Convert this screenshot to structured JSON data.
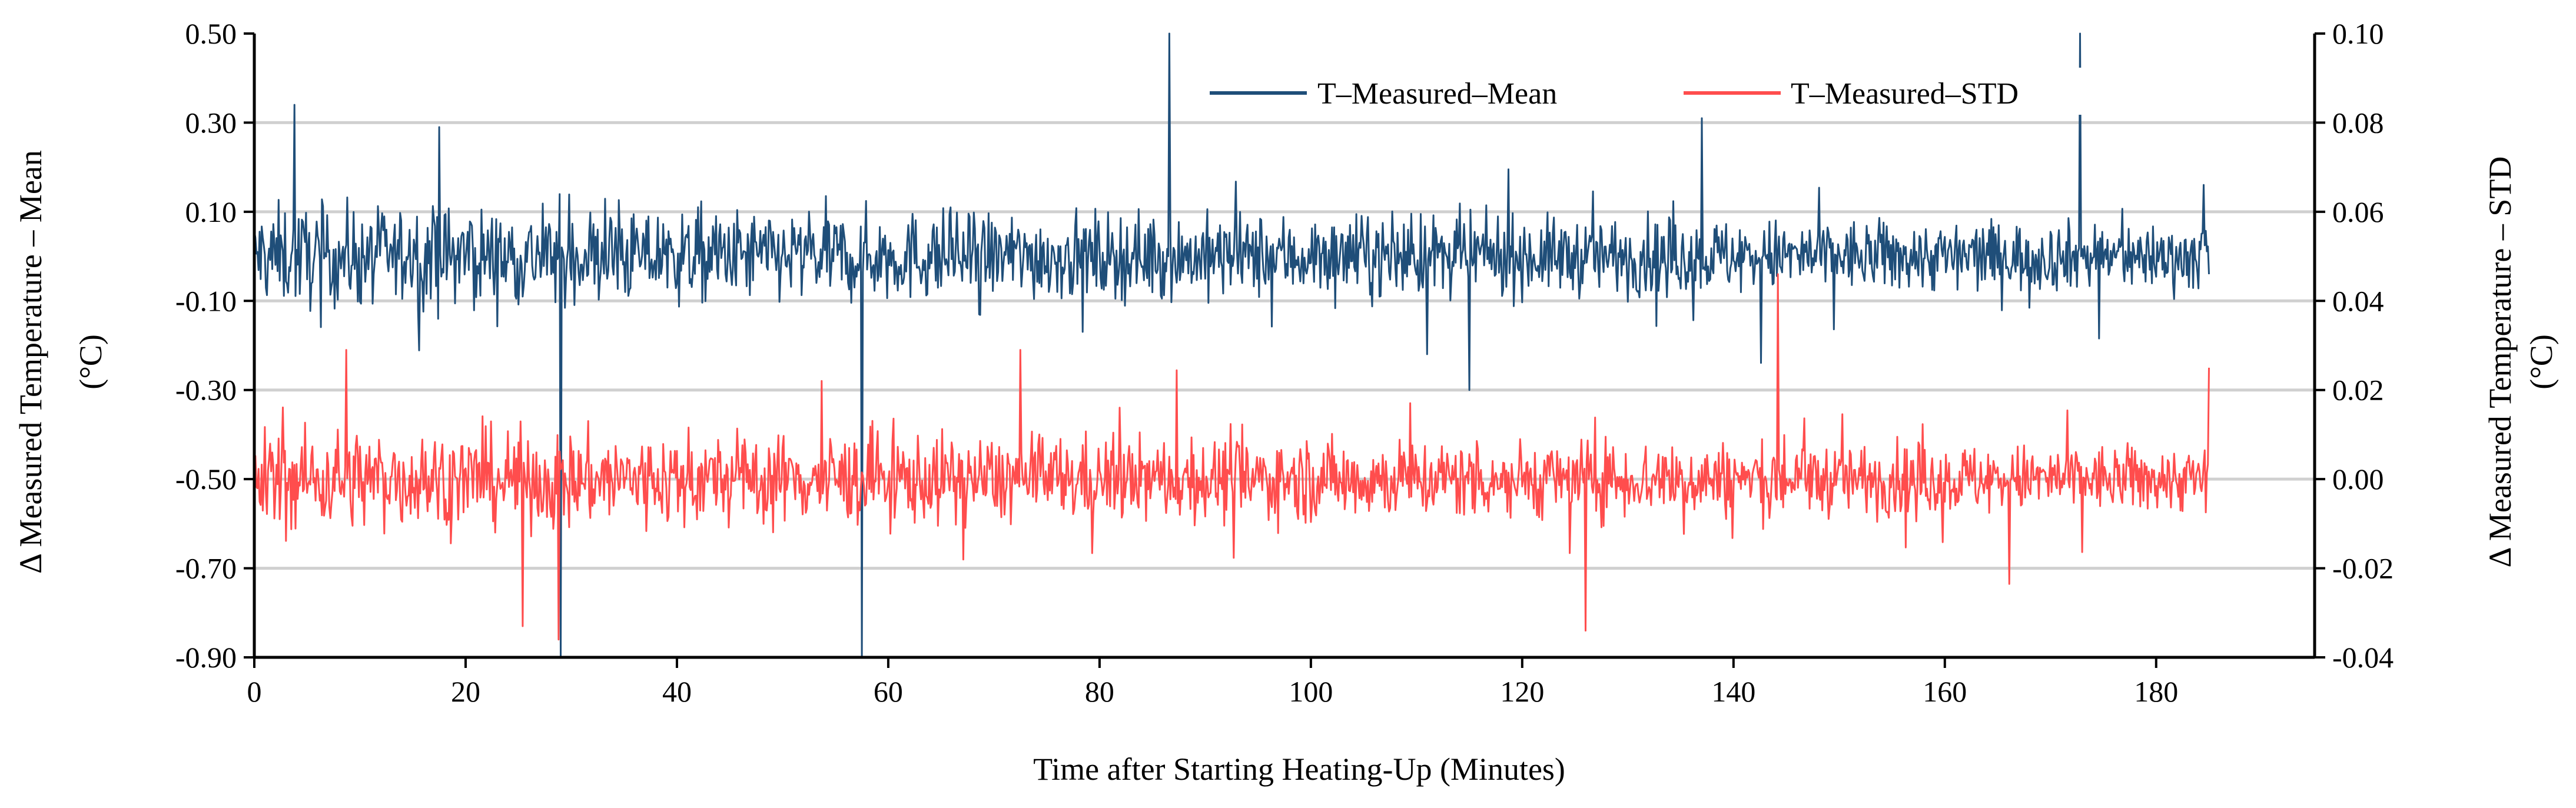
{
  "chart_data": {
    "type": "line",
    "xlabel": "Time after Starting Heating-Up (Minutes)",
    "ylabel_left": "Δ Measured Temperature – Mean (°C)",
    "ylabel_left_lines": [
      "Δ Measured Temperature – Mean",
      "(°C)"
    ],
    "ylabel_right": "Δ Measured Temperature – STD (°C)",
    "ylabel_right_lines": [
      "Δ Measured Temperature – STD",
      "(°C)"
    ],
    "xlim": [
      0,
      185
    ],
    "x_axis_max": 195,
    "ylim_left": [
      -0.9,
      0.5
    ],
    "ylim_right": [
      -0.04,
      0.1
    ],
    "x_ticks": [
      "0",
      "20",
      "40",
      "60",
      "80",
      "100",
      "120",
      "140",
      "160",
      "180"
    ],
    "y_left_ticks": [
      "0.50",
      "0.30",
      "0.10",
      "-0.10",
      "-0.30",
      "-0.50",
      "-0.70",
      "-0.90"
    ],
    "y_right_ticks": [
      "0.10",
      "0.08",
      "0.06",
      "0.04",
      "0.02",
      "0.00",
      "-0.02",
      "-0.04"
    ],
    "grid": "horizontal",
    "legend_position": "top-right",
    "series": [
      {
        "name": "T–Measured–Mean",
        "axis": "left",
        "color": "#1f4e79",
        "baseline": 0.0,
        "noise_amplitude": 0.12,
        "x_step": 0.1,
        "notable_points": [
          {
            "x": 3.8,
            "y": 0.34
          },
          {
            "x": 17.5,
            "y": 0.29
          },
          {
            "x": 29.0,
            "y": -0.9
          },
          {
            "x": 57.5,
            "y": -0.9
          },
          {
            "x": 86.6,
            "y": 0.5
          },
          {
            "x": 115.0,
            "y": -0.3
          },
          {
            "x": 137.0,
            "y": 0.31
          },
          {
            "x": 172.8,
            "y": 0.5
          },
          {
            "x": 185.0,
            "y": -0.04
          }
        ]
      },
      {
        "name": "T–Measured–STD",
        "axis": "right",
        "color": "#ff4d4d",
        "baseline": 0.0,
        "noise_amplitude": 0.012,
        "x_step": 0.1,
        "notable_points": [
          {
            "x": 8.7,
            "y": 0.029
          },
          {
            "x": 25.4,
            "y": -0.033
          },
          {
            "x": 28.8,
            "y": -0.036
          },
          {
            "x": 72.5,
            "y": 0.029
          },
          {
            "x": 126.0,
            "y": -0.034
          },
          {
            "x": 144.2,
            "y": 0.046
          },
          {
            "x": 185.0,
            "y": 0.025
          }
        ]
      }
    ]
  }
}
